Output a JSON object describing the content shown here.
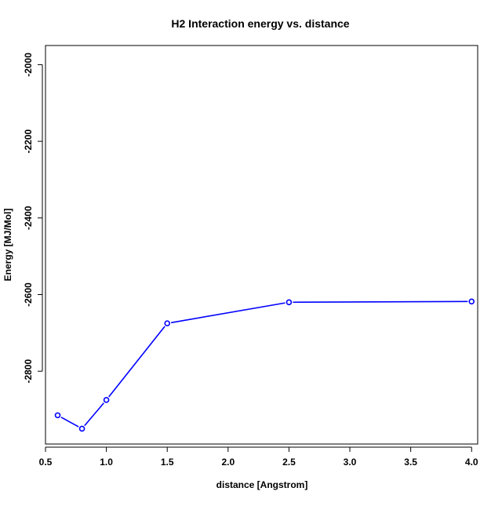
{
  "chart_data": {
    "type": "line",
    "title": "H2 Interaction energy vs. distance",
    "xlabel": "distance [Angstrom]",
    "ylabel": "Energy [MJ/Mol]",
    "xlim": [
      0.5,
      4.05
    ],
    "ylim": [
      -2990,
      -1950
    ],
    "x_ticks": [
      0.5,
      1.0,
      1.5,
      2.0,
      2.5,
      3.0,
      3.5,
      4.0
    ],
    "x_tick_labels": [
      "0.5",
      "1.0",
      "1.5",
      "2.0",
      "2.5",
      "3.0",
      "3.5",
      "4.0"
    ],
    "y_ticks": [
      -2800,
      -2600,
      -2400,
      -2200,
      -2000
    ],
    "y_tick_labels": [
      "-2800",
      "-2600",
      "-2400",
      "-2200",
      "-2000"
    ],
    "grid": false,
    "series": [
      {
        "color": "#0000ff",
        "marker": "open-circle",
        "x": [
          0.6,
          0.8,
          1.0,
          1.5,
          2.5,
          4.0
        ],
        "y": [
          -2915,
          -2950,
          -2875,
          -2675,
          -2620,
          -2618
        ]
      }
    ]
  }
}
